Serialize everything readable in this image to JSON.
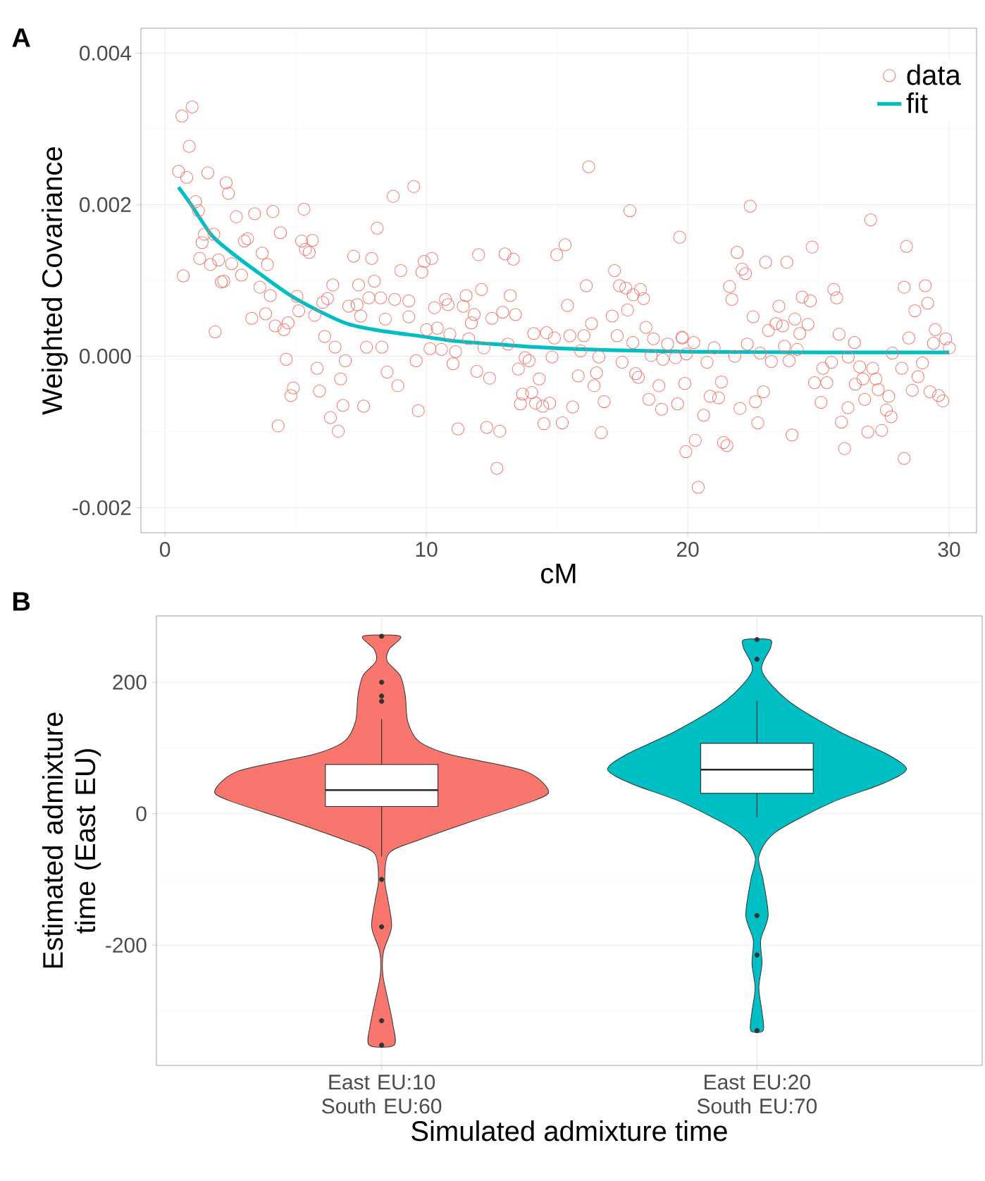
{
  "chart_data": [
    {
      "type": "scatter",
      "annotations": [
        "A"
      ],
      "xlabel": "cM",
      "ylabel": "Weighted Covariance",
      "xlim": [
        -0.92,
        31.05
      ],
      "ylim": [
        -0.00233,
        0.00433
      ],
      "xticks": [
        0,
        10,
        20,
        30
      ],
      "yticks": [
        -0.002,
        {
          "value": 0,
          "label": "0.000"
        },
        0.002,
        0.004
      ],
      "grid": true,
      "legend": "top right",
      "series": [
        {
          "name": "data",
          "type": "scatter",
          "color": "#f8766d",
          "marker": "circle",
          "x": [
            0.65,
            1.04,
            0.93,
            0.52,
            0.83,
            1.64,
            2.34,
            2.43,
            1.17,
            1.28,
            2.73,
            3.43,
            4.13,
            5.32,
            1.51,
            1.87,
            1.42,
            3.04,
            3.16,
            4.42,
            5.23,
            5.64,
            5.37,
            5.52,
            3.72,
            1.33,
            1.74,
            2.05,
            2.55,
            3.92,
            0.7,
            2.16,
            2.25,
            2.93,
            3.63,
            4.03,
            7.22,
            7.91,
            9.02,
            8.73,
            9.52,
            8.12,
            6.42,
            7.41,
            8.01,
            6.22,
            5.05,
            6.04,
            7.8,
            8.25,
            8.79,
            9.33,
            7.03,
            7.35,
            5.12,
            5.73,
            7.49,
            8.43,
            9.33,
            3.32,
            3.85,
            4.71,
            4.22,
            4.55,
            1.92,
            6.11,
            6.51,
            7.71,
            8.3,
            6.9,
            9.61,
            4.64,
            5.82,
            8.5,
            8.91,
            6.72,
            5.91,
            4.91,
            4.82,
            7.6,
            6.81,
            6.33,
            6.63,
            4.33,
            9.69,
            16.21,
            17.79,
            19.69,
            9.92,
            10.21,
            9.83,
            12.0,
            13.01,
            13.33,
            14.99,
            15.31,
            17.2,
            16.12,
            17.39,
            17.63,
            18.19,
            18.31,
            17.91,
            10.73,
            10.31,
            10.83,
            11.41,
            11.52,
            12.11,
            11.72,
            11.83,
            12.51,
            12.92,
            13.21,
            13.41,
            15.4,
            17.11,
            17.7,
            16.32,
            18.4,
            10.42,
            10.01,
            10.9,
            11.62,
            14.11,
            14.6,
            14.9,
            15.49,
            16.03,
            17.3,
            17.9,
            18.69,
            19.23,
            19.8,
            10.14,
            10.58,
            11.12,
            12.2,
            13.12,
            15.9,
            16.6,
            14.81,
            11.02,
            13.78,
            13.93,
            18.6,
            19.05,
            19.53,
            17.49,
            11.93,
            12.42,
            13.52,
            14.32,
            15.81,
            16.51,
            16.42,
            18.01,
            18.11,
            18.9,
            19.89,
            13.68,
            14.03,
            13.6,
            14.18,
            14.45,
            14.72,
            15.6,
            16.8,
            18.51,
            19.0,
            19.61,
            14.5,
            15.2,
            11.21,
            12.31,
            12.81,
            16.69,
            12.7,
            19.93,
            22.39,
            27.0,
            21.89,
            24.76,
            28.37,
            22.08,
            22.21,
            22.98,
            23.79,
            21.6,
            21.69,
            22.5,
            23.49,
            23.09,
            23.38,
            23.63,
            24.1,
            24.38,
            24.69,
            24.6,
            24.29,
            25.59,
            25.7,
            25.79,
            28.28,
            29.09,
            28.69,
            29.18,
            29.47,
            28.46,
            29.4,
            29.87,
            30.01,
            19.78,
            20.23,
            21.01,
            22.28,
            23.7,
            24.19,
            26.38,
            19.95,
            20.74,
            21.8,
            22.77,
            23.2,
            23.88,
            25.5,
            26.14,
            27.83,
            28.19,
            28.98,
            25.17,
            24.85,
            25.32,
            26.58,
            27.08,
            26.7,
            27.2,
            26.41,
            27.29,
            27.69,
            28.81,
            28.59,
            29.27,
            29.6,
            29.76,
            21.29,
            20.86,
            21.18,
            22.9,
            22.59,
            22.0,
            20.61,
            22.68,
            25.1,
            25.88,
            26.13,
            26.77,
            27.6,
            27.78,
            26.89,
            27.42,
            26.0,
            28.28,
            23.99,
            20.29,
            21.37,
            21.5,
            20.4
          ],
          "values": [
            0.00317,
            0.00329,
            0.00277,
            0.00244,
            0.00236,
            0.00242,
            0.00229,
            0.00215,
            0.00204,
            0.00192,
            0.00184,
            0.00188,
            0.00191,
            0.00194,
            0.00161,
            0.00161,
            0.0015,
            0.00152,
            0.00155,
            0.00163,
            0.00152,
            0.00153,
            0.00141,
            0.00137,
            0.00136,
            0.00129,
            0.00121,
            0.00127,
            0.00122,
            0.00121,
            0.00106,
            0.00098,
            0.00099,
            0.00107,
            0.00091,
            0.0008,
            0.00132,
            0.00129,
            0.00113,
            0.00211,
            0.00224,
            0.00169,
            0.00094,
            0.00094,
            0.00099,
            0.00076,
            0.00079,
            0.00071,
            0.00077,
            0.00077,
            0.00075,
            0.00073,
            0.00066,
            0.00068,
            0.0006,
            0.00054,
            0.00053,
            0.00049,
            0.00052,
            0.0005,
            0.00056,
            0.00044,
            0.0004,
            0.00035,
            0.00032,
            0.00026,
            0.00012,
            0.00012,
            0.00012,
            -6e-05,
            -6e-05,
            -4e-05,
            -0.00016,
            -0.00021,
            -0.00039,
            -0.0003,
            -0.00046,
            -0.00042,
            -0.00052,
            -0.00066,
            -0.00065,
            -0.00081,
            -0.00099,
            -0.00092,
            -0.00072,
            0.0025,
            0.00192,
            0.00157,
            0.00125,
            0.00129,
            0.00111,
            0.00134,
            0.00135,
            0.00128,
            0.00134,
            0.00147,
            0.00113,
            0.00093,
            0.00093,
            0.0009,
            0.00088,
            0.00076,
            0.00081,
            0.00075,
            0.00064,
            0.00068,
            0.00066,
            0.0008,
            0.00088,
            0.00044,
            0.00055,
            0.0005,
            0.00058,
            0.0008,
            0.00055,
            0.00067,
            0.00053,
            0.00061,
            0.00043,
            0.00038,
            0.00037,
            0.00035,
            0.00029,
            0.00023,
            0.0003,
            0.00031,
            0.00024,
            0.00027,
            0.00027,
            0.00027,
            0.00018,
            0.00023,
            0.00016,
            0.00024,
            0.0001,
            9e-05,
            6e-05,
            0.00011,
            0.00016,
            7e-05,
            -1e-05,
            -1e-05,
            -0.0001,
            -2e-05,
            -6e-05,
            1e-05,
            -4e-05,
            -2e-05,
            -8e-05,
            -0.0002,
            -0.00029,
            -0.00017,
            -0.0003,
            -0.00026,
            -0.00022,
            -0.00039,
            -0.00023,
            -0.00028,
            -0.00039,
            -0.00036,
            -0.0005,
            -0.00048,
            -0.00063,
            -0.00062,
            -0.00066,
            -0.00062,
            -0.00067,
            -0.0006,
            -0.00057,
            -0.0007,
            -0.00063,
            -0.00089,
            -0.00088,
            -0.00096,
            -0.00094,
            -0.00099,
            -0.00101,
            -0.00148,
            -0.00126,
            0.00198,
            0.0018,
            0.00137,
            0.00144,
            0.00145,
            0.00115,
            0.00109,
            0.00124,
            0.00124,
            0.00092,
            0.00075,
            0.00052,
            0.00066,
            0.00034,
            0.00043,
            0.0004,
            0.00049,
            0.00078,
            0.00073,
            0.00042,
            0.0003,
            0.00088,
            0.00077,
            0.00029,
            0.00091,
            0.00093,
            0.0006,
            0.0007,
            0.00035,
            0.00024,
            0.00017,
            0.00023,
            0.00011,
            0.00025,
            0.00018,
            0.00011,
            0.00016,
            0.00013,
            9e-05,
            0.00018,
            3e-05,
            -8e-05,
            0.0,
            4e-05,
            -7e-05,
            -6e-05,
            -8e-05,
            -1e-05,
            4e-05,
            -0.00016,
            -9e-05,
            -0.00016,
            -0.00035,
            -0.00035,
            -0.00014,
            -0.00016,
            -0.0003,
            -0.0003,
            -0.00037,
            -0.00044,
            -0.00053,
            -0.00027,
            -0.00045,
            -0.00047,
            -0.00052,
            -0.00059,
            -0.00034,
            -0.00053,
            -0.00055,
            -0.00047,
            -0.0006,
            -0.00069,
            -0.00078,
            -0.00088,
            -0.00061,
            -0.00087,
            -0.00068,
            -0.00057,
            -0.00071,
            -0.0008,
            -0.001,
            -0.00098,
            -0.00122,
            -0.00135,
            -0.00104,
            -0.00111,
            -0.00114,
            -0.00118,
            -0.00173
          ]
        },
        {
          "name": "fit",
          "type": "line",
          "color": "#00bfc4",
          "marker": "none",
          "x": [
            0.52,
            1.0,
            1.78,
            2.5,
            3.58,
            5.0,
            6.8,
            8.0,
            9.87,
            11.1,
            13.0,
            14.7,
            17.0,
            20.0,
            25.0,
            30.0
          ],
          "values": [
            0.00223,
            0.002,
            0.0016,
            0.00138,
            0.0011,
            0.00076,
            0.00045,
            0.00035,
            0.00026,
            0.0002,
            0.00015,
            0.00011,
            8e-05,
            6e-05,
            5e-05,
            5e-05
          ]
        }
      ]
    },
    {
      "type": "box",
      "annotations": [
        "B"
      ],
      "xlabel": "Simulated admixture time",
      "ylabel": "Estimated admixture time (East EU)",
      "categories": [
        "East EU:10 South EU:60",
        "East EU:20 South EU:70"
      ],
      "ylim": [
        -383,
        301
      ],
      "yticks": [
        -200,
        0,
        200
      ],
      "grid": true,
      "boxes": [
        {
          "low": -65,
          "q1": 11,
          "median": 36,
          "q3": 75,
          "high": 144,
          "outliers": [
            270,
            200,
            179,
            171,
            -100,
            -172,
            -315,
            -352
          ]
        },
        {
          "low": -6,
          "q1": 31,
          "median": 67,
          "q3": 107,
          "high": 172,
          "outliers": [
            265,
            235,
            -155,
            -215,
            -330
          ]
        }
      ]
    }
  ]
}
